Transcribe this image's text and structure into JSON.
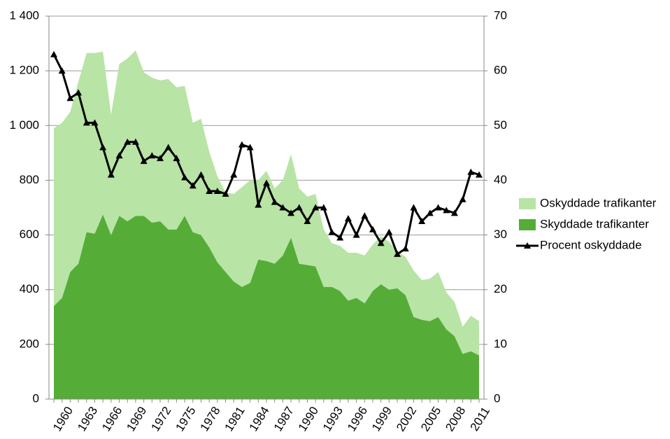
{
  "chart_data": {
    "type": "stacked-area-line",
    "categories": [
      1960,
      null,
      null,
      1963,
      null,
      null,
      1966,
      null,
      null,
      1969,
      null,
      null,
      1972,
      null,
      null,
      1975,
      null,
      null,
      1978,
      null,
      null,
      1981,
      null,
      null,
      1984,
      null,
      null,
      1987,
      null,
      null,
      1990,
      null,
      null,
      1993,
      null,
      null,
      1996,
      null,
      null,
      1999,
      null,
      null,
      2002,
      null,
      null,
      2005,
      null,
      null,
      2008,
      null,
      null,
      2011,
      null
    ],
    "series": [
      {
        "name": "Oskyddade trafikanter",
        "color": "#b8e4a6",
        "kind": "area",
        "values": [
          650,
          640,
          585,
          665,
          655,
          660,
          595,
          440,
          555,
          595,
          605,
          525,
          530,
          515,
          550,
          520,
          475,
          400,
          425,
          350,
          315,
          290,
          320,
          365,
          375,
          290,
          330,
          275,
          275,
          305,
          275,
          250,
          265,
          210,
          160,
          165,
          175,
          165,
          175,
          170,
          175,
          175,
          135,
          140,
          170,
          145,
          155,
          165,
          135,
          125,
          100,
          130,
          125
        ]
      },
      {
        "name": "Skyddade trafikanter",
        "color": "#55ad37",
        "kind": "area",
        "values": [
          340,
          370,
          465,
          495,
          610,
          605,
          675,
          600,
          670,
          650,
          670,
          670,
          645,
          650,
          620,
          620,
          670,
          610,
          600,
          555,
          500,
          465,
          430,
          410,
          425,
          510,
          505,
          495,
          525,
          590,
          495,
          490,
          485,
          410,
          410,
          395,
          360,
          370,
          350,
          395,
          420,
          400,
          405,
          380,
          300,
          290,
          285,
          300,
          255,
          230,
          165,
          175,
          160
        ]
      },
      {
        "name": "Procent oskyddade",
        "color": "#000000",
        "kind": "line",
        "axis": "y2",
        "values": [
          63,
          60,
          55,
          56,
          50.5,
          50.5,
          46,
          41,
          44.5,
          47,
          47,
          43.5,
          44.5,
          44,
          46,
          44,
          40.5,
          39,
          41,
          38,
          38,
          37.5,
          41,
          46.5,
          46,
          35.5,
          39.5,
          36,
          35,
          34,
          35,
          32.5,
          35,
          35,
          30.5,
          29.5,
          33,
          30,
          33.5,
          31,
          28.5,
          30.5,
          26.5,
          27.5,
          35,
          32.5,
          34,
          35,
          34.5,
          34,
          36.5,
          41.5,
          41
        ]
      }
    ],
    "ylim": [
      0,
      1400
    ],
    "yticks": [
      0,
      200,
      400,
      600,
      800,
      {
        "value": 1000,
        "label": "1 000"
      },
      {
        "value": 1200,
        "label": "1 200"
      },
      {
        "value": 1400,
        "label": "1 400"
      }
    ],
    "y2lim": [
      0,
      70
    ],
    "y2ticks": [
      0,
      10,
      20,
      30,
      40,
      50,
      60,
      70
    ],
    "grid": true,
    "legend": "right"
  }
}
